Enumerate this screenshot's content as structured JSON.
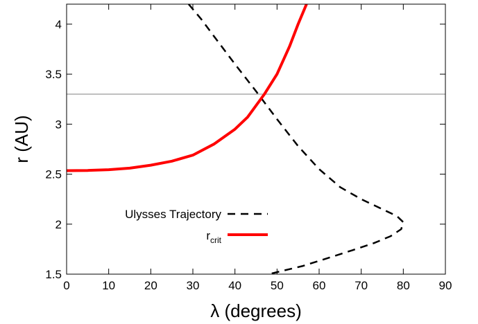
{
  "chart_data": {
    "type": "line",
    "xlabel": "λ (degrees)",
    "ylabel": "r (AU)",
    "xlim": [
      0,
      90
    ],
    "ylim": [
      1.5,
      4.2
    ],
    "x_ticks": [
      0,
      10,
      20,
      30,
      40,
      50,
      60,
      70,
      80,
      90
    ],
    "y_ticks": [
      1.5,
      2,
      2.5,
      3,
      3.5,
      4
    ],
    "y_tick_labels": [
      "1.5",
      "2",
      "2.5",
      "3",
      "3.5",
      "4"
    ],
    "grid": false,
    "legend_position": "bottom-center",
    "reference_line": {
      "y": 3.3,
      "color": "#999999"
    },
    "series": [
      {
        "name": "Ulysses Trajectory",
        "style": "dashed",
        "color": "#000000",
        "points": [
          [
            29,
            4.2
          ],
          [
            32,
            4.05
          ],
          [
            35,
            3.88
          ],
          [
            40,
            3.6
          ],
          [
            45,
            3.33
          ],
          [
            50,
            3.05
          ],
          [
            55,
            2.78
          ],
          [
            60,
            2.55
          ],
          [
            65,
            2.37
          ],
          [
            70,
            2.25
          ],
          [
            75,
            2.15
          ],
          [
            78.5,
            2.08
          ],
          [
            80,
            2.02
          ],
          [
            79.5,
            1.95
          ],
          [
            77,
            1.88
          ],
          [
            73,
            1.81
          ],
          [
            68,
            1.74
          ],
          [
            62,
            1.66
          ],
          [
            56,
            1.58
          ],
          [
            50,
            1.52
          ],
          [
            48,
            1.5
          ]
        ]
      },
      {
        "name": "r_crit",
        "name_main": "r",
        "name_sub": "crit",
        "style": "solid",
        "color": "#ff0000",
        "points": [
          [
            0,
            2.535
          ],
          [
            5,
            2.537
          ],
          [
            10,
            2.545
          ],
          [
            15,
            2.56
          ],
          [
            20,
            2.59
          ],
          [
            25,
            2.63
          ],
          [
            30,
            2.69
          ],
          [
            35,
            2.8
          ],
          [
            40,
            2.95
          ],
          [
            43,
            3.07
          ],
          [
            47,
            3.3
          ],
          [
            50,
            3.5
          ],
          [
            53,
            3.78
          ],
          [
            55,
            4.0
          ],
          [
            57,
            4.2
          ]
        ]
      }
    ]
  }
}
